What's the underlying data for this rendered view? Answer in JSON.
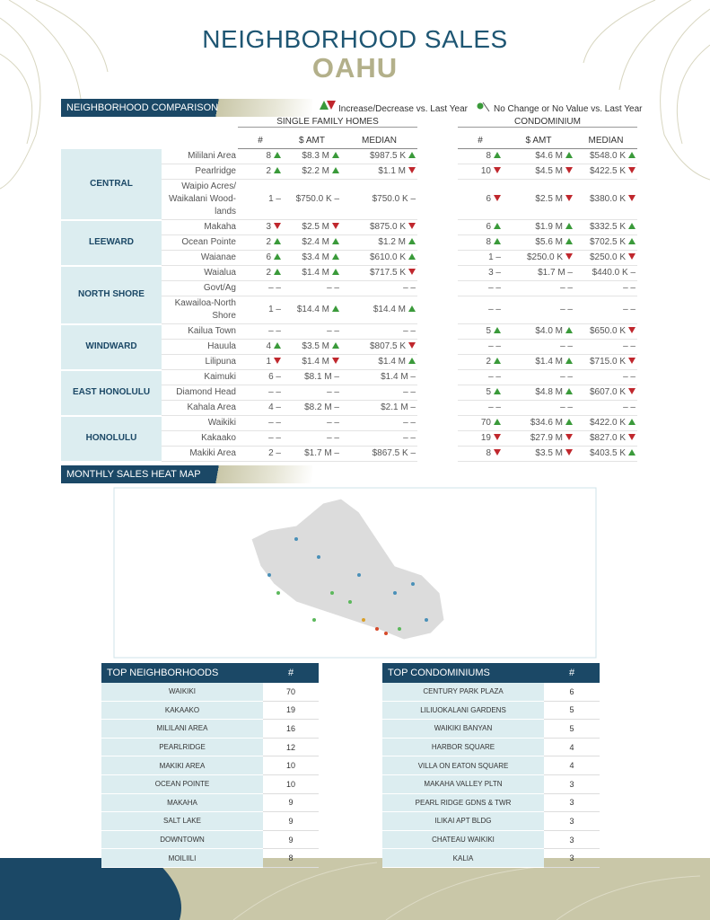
{
  "header": {
    "title": "NEIGHBORHOOD SALES",
    "subtitle": "OAHU"
  },
  "comparison": {
    "heading": "NEIGHBORHOOD COMPARISON",
    "legend": [
      "Increase/Decrease vs. Last Year",
      "No Change or No Value vs. Last Year"
    ],
    "groups": [
      "SINGLE FAMILY HOMES",
      "CONDOMINIUM"
    ],
    "columns": [
      "#",
      "$ AMT",
      "MEDIAN"
    ],
    "regions": [
      {
        "name": "CENTRAL",
        "rows": [
          {
            "neighborhood": "Mililani Area",
            "sfh": [
              [
                "8",
                "up"
              ],
              [
                "$8.3 M",
                "up"
              ],
              [
                "$987.5 K",
                "up"
              ]
            ],
            "condo": [
              [
                "8",
                "up"
              ],
              [
                "$4.6 M",
                "up"
              ],
              [
                "$548.0 K",
                "up"
              ]
            ]
          },
          {
            "neighborhood": "Pearlridge",
            "sfh": [
              [
                "2",
                "up"
              ],
              [
                "$2.2 M",
                "up"
              ],
              [
                "$1.1 M",
                "down"
              ]
            ],
            "condo": [
              [
                "10",
                "down"
              ],
              [
                "$4.5 M",
                "down"
              ],
              [
                "$422.5 K",
                "down"
              ]
            ]
          },
          {
            "neighborhood": "Waipio Acres/ Waikalani Wood-lands",
            "sfh": [
              [
                "1 –"
              ],
              [
                "$750.0 K –"
              ],
              [
                "$750.0 K –"
              ]
            ],
            "condo": [
              [
                "6",
                "down"
              ],
              [
                "$2.5 M",
                "down"
              ],
              [
                "$380.0 K",
                "down"
              ]
            ]
          }
        ]
      },
      {
        "name": "LEEWARD",
        "rows": [
          {
            "neighborhood": "Makaha",
            "sfh": [
              [
                "3",
                "down"
              ],
              [
                "$2.5 M",
                "down"
              ],
              [
                "$875.0 K",
                "down"
              ]
            ],
            "condo": [
              [
                "6",
                "up"
              ],
              [
                "$1.9 M",
                "up"
              ],
              [
                "$332.5 K",
                "up"
              ]
            ]
          },
          {
            "neighborhood": "Ocean Pointe",
            "sfh": [
              [
                "2",
                "up"
              ],
              [
                "$2.4 M",
                "up"
              ],
              [
                "$1.2 M",
                "up"
              ]
            ],
            "condo": [
              [
                "8",
                "up"
              ],
              [
                "$5.6 M",
                "up"
              ],
              [
                "$702.5 K",
                "up"
              ]
            ]
          },
          {
            "neighborhood": "Waianae",
            "sfh": [
              [
                "6",
                "up"
              ],
              [
                "$3.4 M",
                "up"
              ],
              [
                "$610.0 K",
                "up"
              ]
            ],
            "condo": [
              [
                "1 –"
              ],
              [
                "$250.0 K",
                "down"
              ],
              [
                "$250.0 K",
                "down"
              ]
            ]
          }
        ]
      },
      {
        "name": "NORTH SHORE",
        "rows": [
          {
            "neighborhood": "Waialua",
            "sfh": [
              [
                "2",
                "up"
              ],
              [
                "$1.4 M",
                "up"
              ],
              [
                "$717.5 K",
                "down"
              ]
            ],
            "condo": [
              [
                "3 –"
              ],
              [
                "$1.7 M –"
              ],
              [
                "$440.0 K –"
              ]
            ]
          },
          {
            "neighborhood": "Govt/Ag",
            "sfh": [
              [
                "– –"
              ],
              [
                "– –"
              ],
              [
                "– –"
              ]
            ],
            "condo": [
              [
                "– –"
              ],
              [
                "– –"
              ],
              [
                "– –"
              ]
            ]
          },
          {
            "neighborhood": "Kawailoa-North Shore",
            "sfh": [
              [
                "1 –"
              ],
              [
                "$14.4 M",
                "up"
              ],
              [
                "$14.4 M",
                "up"
              ]
            ],
            "condo": [
              [
                "– –"
              ],
              [
                "– –"
              ],
              [
                "– –"
              ]
            ]
          }
        ]
      },
      {
        "name": "WINDWARD",
        "rows": [
          {
            "neighborhood": "Kailua Town",
            "sfh": [
              [
                "– –"
              ],
              [
                "– –"
              ],
              [
                "– –"
              ]
            ],
            "condo": [
              [
                "5",
                "up"
              ],
              [
                "$4.0 M",
                "up"
              ],
              [
                "$650.0 K",
                "down"
              ]
            ]
          },
          {
            "neighborhood": "Hauula",
            "sfh": [
              [
                "4",
                "up"
              ],
              [
                "$3.5 M",
                "up"
              ],
              [
                "$807.5 K",
                "down"
              ]
            ],
            "condo": [
              [
                "– –"
              ],
              [
                "– –"
              ],
              [
                "– –"
              ]
            ]
          },
          {
            "neighborhood": "Lilipuna",
            "sfh": [
              [
                "1",
                "down"
              ],
              [
                "$1.4 M",
                "down"
              ],
              [
                "$1.4 M",
                "up"
              ]
            ],
            "condo": [
              [
                "2",
                "up"
              ],
              [
                "$1.4 M",
                "up"
              ],
              [
                "$715.0 K",
                "down"
              ]
            ]
          }
        ]
      },
      {
        "name": "EAST HONOLULU",
        "rows": [
          {
            "neighborhood": "Kaimuki",
            "sfh": [
              [
                "6 –"
              ],
              [
                "$8.1 M –"
              ],
              [
                "$1.4 M –"
              ]
            ],
            "condo": [
              [
                "– –"
              ],
              [
                "– –"
              ],
              [
                "– –"
              ]
            ]
          },
          {
            "neighborhood": "Diamond Head",
            "sfh": [
              [
                "– –"
              ],
              [
                "– –"
              ],
              [
                "– –"
              ]
            ],
            "condo": [
              [
                "5",
                "up"
              ],
              [
                "$4.8 M",
                "up"
              ],
              [
                "$607.0 K",
                "down"
              ]
            ]
          },
          {
            "neighborhood": "Kahala Area",
            "sfh": [
              [
                "4 –"
              ],
              [
                "$8.2 M –"
              ],
              [
                "$2.1 M –"
              ]
            ],
            "condo": [
              [
                "– –"
              ],
              [
                "– –"
              ],
              [
                "– –"
              ]
            ]
          }
        ]
      },
      {
        "name": "HONOLULU",
        "rows": [
          {
            "neighborhood": "Waikiki",
            "sfh": [
              [
                "– –"
              ],
              [
                "– –"
              ],
              [
                "– –"
              ]
            ],
            "condo": [
              [
                "70",
                "up"
              ],
              [
                "$34.6 M",
                "up"
              ],
              [
                "$422.0 K",
                "up"
              ]
            ]
          },
          {
            "neighborhood": "Kakaako",
            "sfh": [
              [
                "– –"
              ],
              [
                "– –"
              ],
              [
                "– –"
              ]
            ],
            "condo": [
              [
                "19",
                "down"
              ],
              [
                "$27.9 M",
                "down"
              ],
              [
                "$827.0 K",
                "down"
              ]
            ]
          },
          {
            "neighborhood": "Makiki Area",
            "sfh": [
              [
                "2 –"
              ],
              [
                "$1.7 M –"
              ],
              [
                "$867.5 K –"
              ]
            ],
            "condo": [
              [
                "8",
                "down"
              ],
              [
                "$3.5 M",
                "down"
              ],
              [
                "$403.5 K",
                "up"
              ]
            ]
          }
        ]
      }
    ]
  },
  "heatmap": {
    "heading": "MONTHLY SALES HEAT MAP"
  },
  "top_neighborhoods": {
    "heading": "TOP NEIGHBORHOODS",
    "count_label": "#",
    "rows": [
      [
        "WAIKIKI",
        "70"
      ],
      [
        "KAKAAKO",
        "19"
      ],
      [
        "MILILANI AREA",
        "16"
      ],
      [
        "PEARLRIDGE",
        "12"
      ],
      [
        "MAKIKI AREA",
        "10"
      ],
      [
        "OCEAN POINTE",
        "10"
      ],
      [
        "MAKAHA",
        "9"
      ],
      [
        "SALT LAKE",
        "9"
      ],
      [
        "DOWNTOWN",
        "9"
      ],
      [
        "MOILIILI",
        "8"
      ]
    ]
  },
  "top_condominiums": {
    "heading": "TOP CONDOMINIUMS",
    "count_label": "#",
    "rows": [
      [
        "CENTURY PARK PLAZA",
        "6"
      ],
      [
        "LILIUOKALANI GARDENS",
        "5"
      ],
      [
        "WAIKIKI BANYAN",
        "5"
      ],
      [
        "HARBOR SQUARE",
        "4"
      ],
      [
        "VILLA ON EATON SQUARE",
        "4"
      ],
      [
        "MAKAHA VALLEY PLTN",
        "3"
      ],
      [
        "PEARL RIDGE GDNS & TWR",
        "3"
      ],
      [
        "ILIKAI APT BLDG",
        "3"
      ],
      [
        "CHATEAU WAIKIKI",
        "3"
      ],
      [
        "KALIA",
        "3"
      ]
    ]
  }
}
